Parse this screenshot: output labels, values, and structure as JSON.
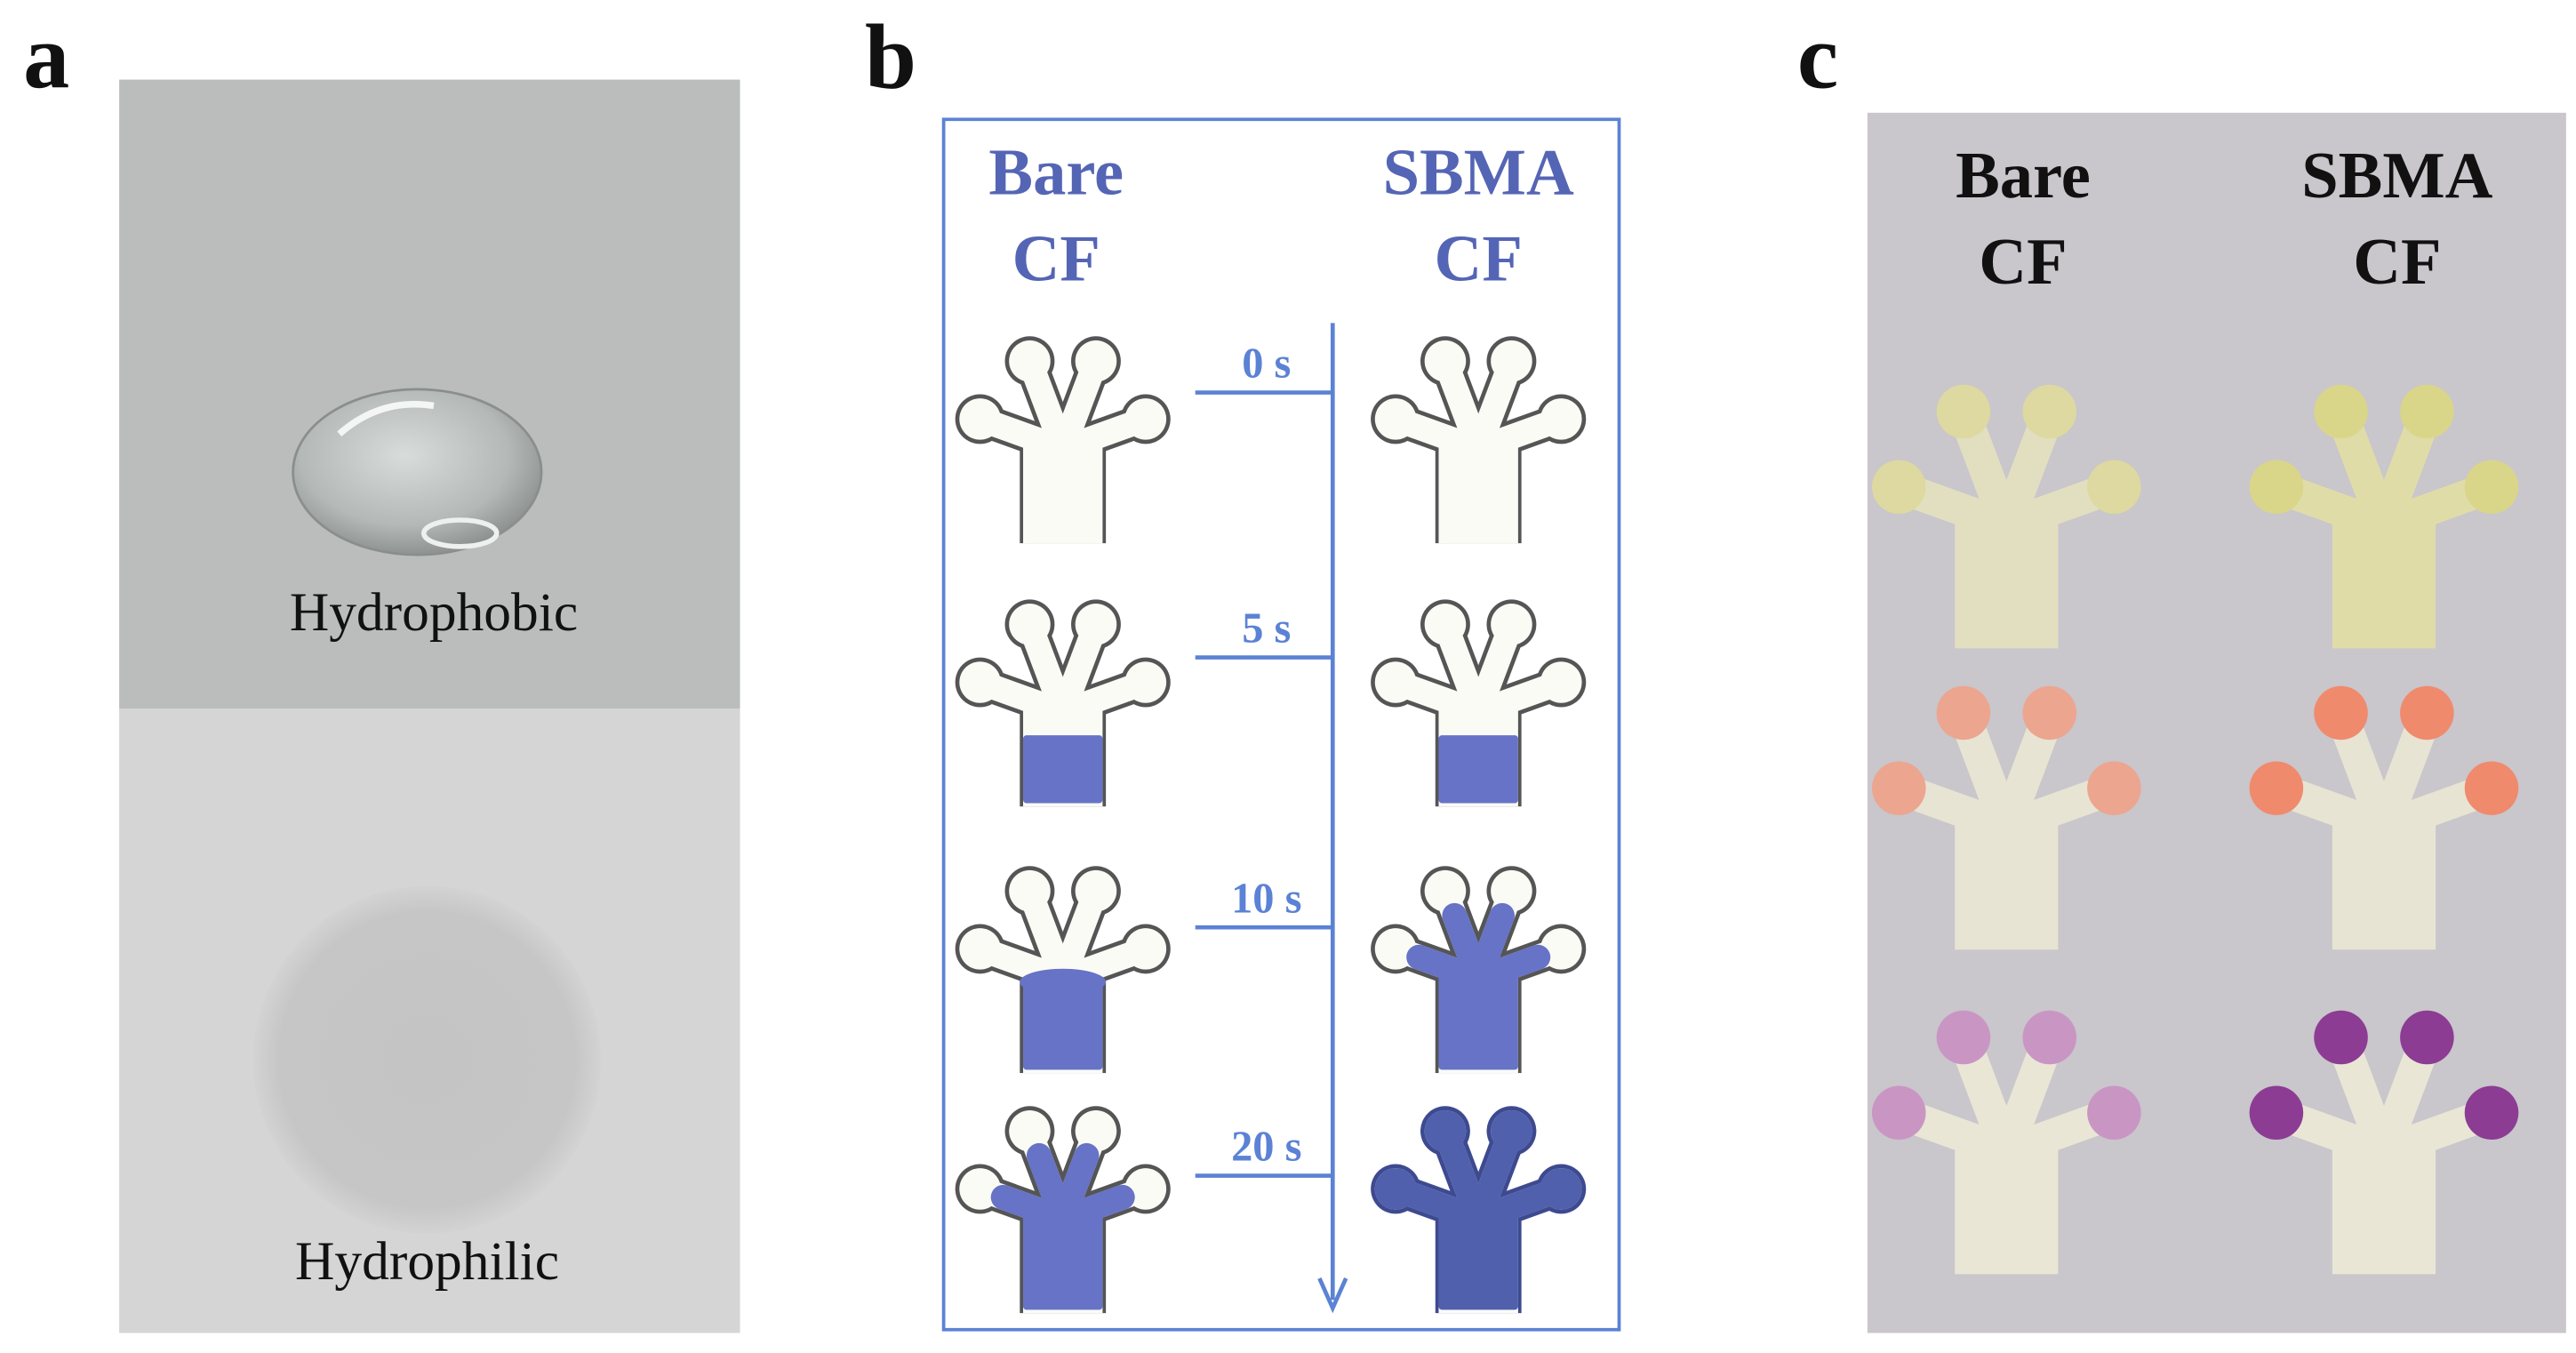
{
  "panels": {
    "a": {
      "label": "a",
      "top_caption": "Hydrophobic",
      "bottom_caption": "Hydrophilic"
    },
    "b": {
      "label": "b",
      "left_heading": [
        "Bare",
        "CF"
      ],
      "right_heading": [
        "SBMA",
        "CF"
      ],
      "times": [
        "0 s",
        "5 s",
        "10 s",
        "20 s"
      ]
    },
    "c": {
      "label": "c",
      "left_heading": [
        "Bare",
        "CF"
      ],
      "right_heading": [
        "SBMA",
        "CF"
      ]
    }
  }
}
